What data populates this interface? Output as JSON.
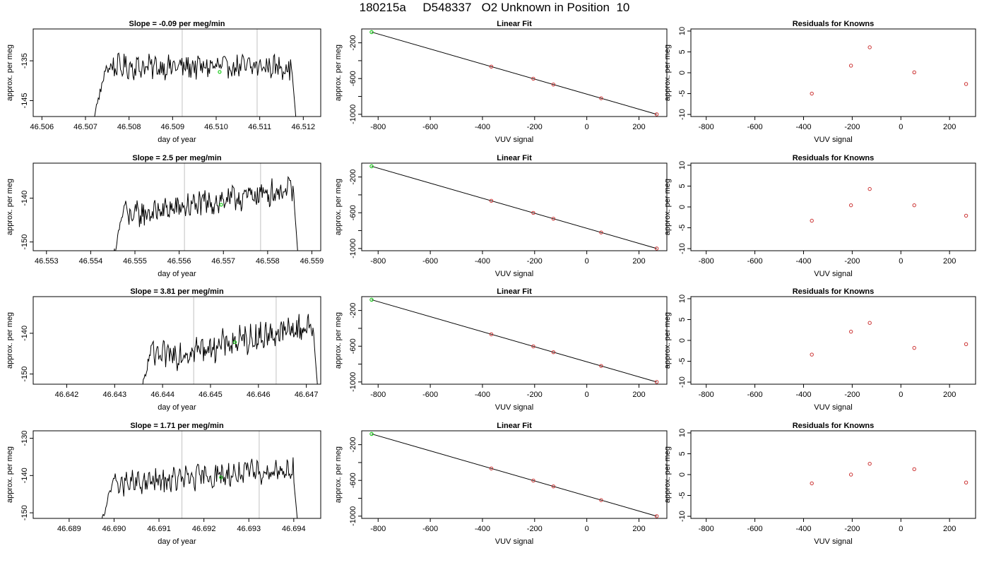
{
  "title": "180215a     D548337   O2 Unknown in Position  10",
  "colors": {
    "trace": "#000000",
    "vline": "#cccccc",
    "known_points": "#cc3333",
    "unknown_point": "#22cc22",
    "fit_line": "#000000"
  },
  "chart_data": [
    {
      "type": "line",
      "row": 0,
      "title": "Slope =  -0.09  per meg/min",
      "xlabel": "day of year",
      "ylabel": "approx. per meg",
      "xlim": [
        46.5058,
        46.5124
      ],
      "ylim": [
        -149,
        -127
      ],
      "xticks": [
        "46.506",
        "46.507",
        "46.508",
        "46.509",
        "46.510",
        "46.511",
        "46.512"
      ],
      "yticks": [
        "-135",
        "-145"
      ],
      "xstart": 46.50715,
      "xend": 46.51185,
      "vlines": [
        46.50922,
        46.51094
      ],
      "marker": {
        "x": 46.51008,
        "y": -137.8
      },
      "base": -136.5,
      "amp": 2.5,
      "rise": 0.0
    },
    {
      "type": "line",
      "row": 1,
      "title": "Slope =  2.5  per meg/min",
      "xlabel": "day of year",
      "ylabel": "approx. per meg",
      "xlim": [
        46.5527,
        46.5592
      ],
      "ylim": [
        -152,
        -132
      ],
      "xticks": [
        "46.553",
        "46.554",
        "46.555",
        "46.556",
        "46.557",
        "46.558",
        "46.559"
      ],
      "yticks": [
        "-140",
        "-150"
      ],
      "xstart": 46.5545,
      "xend": 46.5587,
      "vlines": [
        46.55612,
        46.55784
      ],
      "marker": {
        "x": 46.55695,
        "y": -141.5
      },
      "base": -140.5,
      "amp": 2.5,
      "rise": 7.0
    },
    {
      "type": "line",
      "row": 2,
      "title": "Slope =  3.81  per meg/min",
      "xlabel": "day of year",
      "ylabel": "approx. per meg",
      "xlim": [
        46.6413,
        46.6473
      ],
      "ylim": [
        -152.5,
        -131
      ],
      "xticks": [
        "46.642",
        "46.643",
        "46.644",
        "46.645",
        "46.646",
        "46.647"
      ],
      "yticks": [
        "-140",
        "-150"
      ],
      "xstart": 46.64355,
      "xend": 46.64725,
      "vlines": [
        46.64465,
        46.64637
      ],
      "marker": {
        "x": 46.64551,
        "y": -142.2
      },
      "base": -141.5,
      "amp": 3.0,
      "rise": 9.0
    },
    {
      "type": "line",
      "row": 3,
      "title": "Slope =  1.71  per meg/min",
      "xlabel": "day of year",
      "ylabel": "approx. per meg",
      "xlim": [
        46.6882,
        46.6946
      ],
      "ylim": [
        -151.5,
        -128
      ],
      "xticks": [
        "46.689",
        "46.690",
        "46.691",
        "46.692",
        "46.693",
        "46.694"
      ],
      "yticks": [
        "-130",
        "-140",
        "-150"
      ],
      "xstart": 46.6897,
      "xend": 46.6941,
      "vlines": [
        46.69151,
        46.69323
      ],
      "marker": {
        "x": 46.69238,
        "y": -140.5
      },
      "base": -140.0,
      "amp": 2.8,
      "rise": 5.0
    },
    {
      "type": "scatter",
      "row": 0,
      "title": "Linear Fit",
      "xlabel": "VUV signal",
      "ylabel": "approx. per meg",
      "xlim": [
        -863,
        307
      ],
      "ylim": [
        -1025,
        -45
      ],
      "xticks": [
        -800,
        -600,
        -400,
        -200,
        0,
        200
      ],
      "yticks": [
        -200,
        -400,
        -600,
        -800,
        -1000
      ],
      "ylabeled": [
        "-200",
        "-600",
        "-1000"
      ],
      "unknown": {
        "x": -825,
        "y": -80
      },
      "known_x": [
        -366,
        -205,
        -128,
        55,
        268
      ],
      "fit": [
        [
          -825,
          -80
        ],
        [
          268,
          -1000
        ]
      ]
    },
    {
      "type": "scatter",
      "row": 1,
      "title": "Linear Fit",
      "xlabel": "VUV signal",
      "ylabel": "approx. per meg",
      "xlim": [
        -863,
        307
      ],
      "ylim": [
        -1025,
        -45
      ],
      "xticks": [
        -800,
        -600,
        -400,
        -200,
        0,
        200
      ],
      "yticks": [
        -200,
        -400,
        -600,
        -800,
        -1000
      ],
      "ylabeled": [
        "-200",
        "-600",
        "-1000"
      ],
      "unknown": {
        "x": -825,
        "y": -80
      },
      "known_x": [
        -366,
        -205,
        -128,
        55,
        268
      ],
      "fit": [
        [
          -825,
          -80
        ],
        [
          268,
          -1000
        ]
      ]
    },
    {
      "type": "scatter",
      "row": 2,
      "title": "Linear Fit",
      "xlabel": "VUV signal",
      "ylabel": "approx. per meg",
      "xlim": [
        -863,
        307
      ],
      "ylim": [
        -1025,
        -45
      ],
      "xticks": [
        -800,
        -600,
        -400,
        -200,
        0,
        200
      ],
      "yticks": [
        -200,
        -400,
        -600,
        -800,
        -1000
      ],
      "ylabeled": [
        "-200",
        "-600",
        "-1000"
      ],
      "unknown": {
        "x": -825,
        "y": -80
      },
      "known_x": [
        -366,
        -205,
        -128,
        55,
        268
      ],
      "fit": [
        [
          -825,
          -80
        ],
        [
          268,
          -1000
        ]
      ]
    },
    {
      "type": "scatter",
      "row": 3,
      "title": "Linear Fit",
      "xlabel": "VUV signal",
      "ylabel": "approx. per meg",
      "xlim": [
        -863,
        307
      ],
      "ylim": [
        -1025,
        -45
      ],
      "xticks": [
        -800,
        -600,
        -400,
        -200,
        0,
        200
      ],
      "yticks": [
        -200,
        -400,
        -600,
        -800,
        -1000
      ],
      "ylabeled": [
        "-200",
        "-600",
        "-1000"
      ],
      "unknown": {
        "x": -825,
        "y": -80
      },
      "known_x": [
        -366,
        -205,
        -128,
        55,
        268
      ],
      "fit": [
        [
          -825,
          -80
        ],
        [
          268,
          -1000
        ]
      ]
    },
    {
      "type": "scatter",
      "row": 0,
      "title": "Residuals for Knowns",
      "xlabel": "VUV signal",
      "ylabel": "approx. per meg",
      "xlim": [
        -863,
        307
      ],
      "ylim": [
        -10.5,
        10.5
      ],
      "xticks": [
        -800,
        -600,
        -400,
        -200,
        0,
        200
      ],
      "yticks": [
        10,
        5,
        0,
        -5,
        -10
      ],
      "x": [
        -366,
        -205,
        -128,
        55,
        268
      ],
      "y": [
        -5.0,
        1.7,
        6.1,
        0.1,
        -2.7
      ]
    },
    {
      "type": "scatter",
      "row": 1,
      "title": "Residuals for Knowns",
      "xlabel": "VUV signal",
      "ylabel": "approx. per meg",
      "xlim": [
        -863,
        307
      ],
      "ylim": [
        -10.5,
        10.5
      ],
      "xticks": [
        -800,
        -600,
        -400,
        -200,
        0,
        200
      ],
      "yticks": [
        10,
        5,
        0,
        -5,
        -10
      ],
      "x": [
        -366,
        -205,
        -128,
        55,
        268
      ],
      "y": [
        -3.3,
        0.4,
        4.3,
        0.4,
        -2.1
      ]
    },
    {
      "type": "scatter",
      "row": 2,
      "title": "Residuals for Knowns",
      "xlabel": "VUV signal",
      "ylabel": "approx. per meg",
      "xlim": [
        -863,
        307
      ],
      "ylim": [
        -10.5,
        10.5
      ],
      "xticks": [
        -800,
        -600,
        -400,
        -200,
        0,
        200
      ],
      "yticks": [
        10,
        5,
        0,
        -5,
        -10
      ],
      "x": [
        -366,
        -205,
        -128,
        55,
        268
      ],
      "y": [
        -3.4,
        2.1,
        4.2,
        -1.8,
        -0.9
      ]
    },
    {
      "type": "scatter",
      "row": 3,
      "title": "Residuals for Knowns",
      "xlabel": "VUV signal",
      "ylabel": "approx. per meg",
      "xlim": [
        -863,
        307
      ],
      "ylim": [
        -10.5,
        10.5
      ],
      "xticks": [
        -800,
        -600,
        -400,
        -200,
        0,
        200
      ],
      "yticks": [
        10,
        5,
        0,
        -5,
        -10
      ],
      "x": [
        -366,
        -205,
        -128,
        55,
        268
      ],
      "y": [
        -2.1,
        0.0,
        2.6,
        1.3,
        -1.9
      ]
    }
  ]
}
